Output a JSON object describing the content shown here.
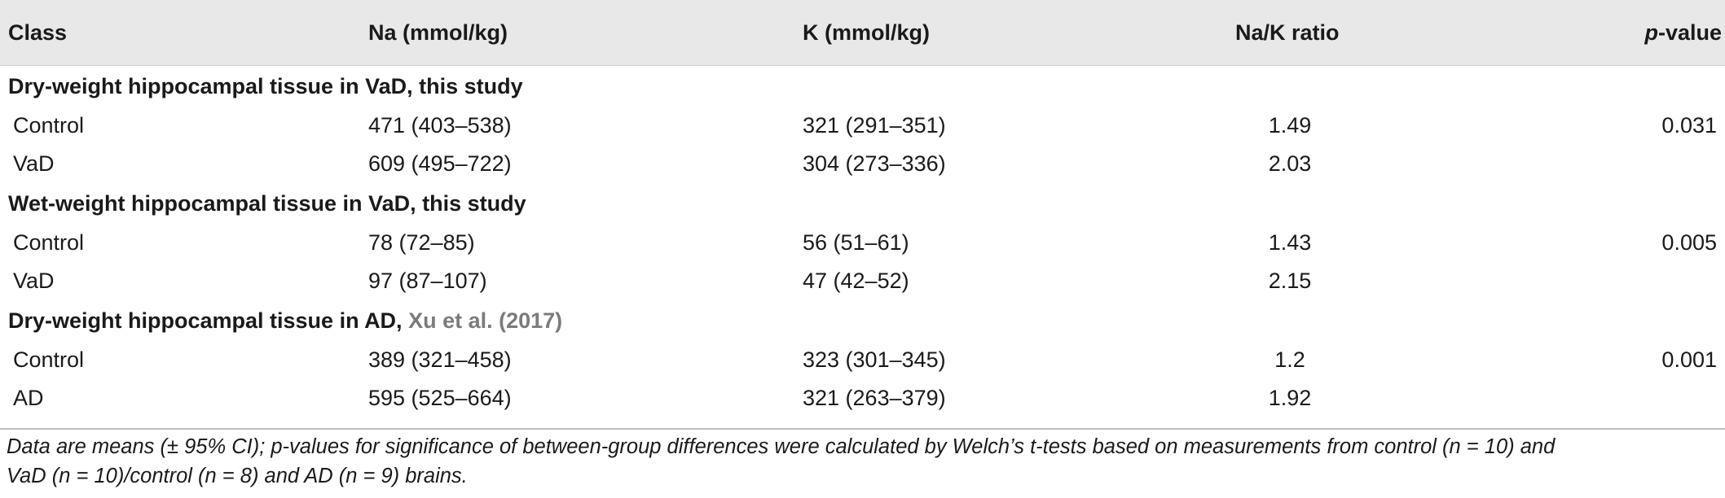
{
  "table": {
    "headers": {
      "class": "Class",
      "na": "Na (mmol/kg)",
      "k": "K (mmol/kg)",
      "ratio": "Na/K ratio",
      "p": "p",
      "p_suffix": "-value"
    },
    "sections": [
      {
        "title": "Dry-weight hippocampal tissue in VaD, this study",
        "citation": "",
        "rows": [
          {
            "class": "Control",
            "na": "471 (403–538)",
            "k": "321 (291–351)",
            "ratio": "1.49",
            "p": "0.031"
          },
          {
            "class": "VaD",
            "na": "609 (495–722)",
            "k": "304 (273–336)",
            "ratio": "2.03",
            "p": ""
          }
        ]
      },
      {
        "title": "Wet-weight hippocampal tissue in VaD, this study",
        "citation": "",
        "rows": [
          {
            "class": "Control",
            "na": "78 (72–85)",
            "k": "56 (51–61)",
            "ratio": "1.43",
            "p": "0.005"
          },
          {
            "class": "VaD",
            "na": "97 (87–107)",
            "k": "47 (42–52)",
            "ratio": "2.15",
            "p": ""
          }
        ]
      },
      {
        "title": "Dry-weight hippocampal tissue in AD, ",
        "citation": "Xu et al. (2017)",
        "rows": [
          {
            "class": "Control",
            "na": "389 (321–458)",
            "k": "323 (301–345)",
            "ratio": "1.2",
            "p": "0.001"
          },
          {
            "class": "AD",
            "na": "595 (525–664)",
            "k": "321 (263–379)",
            "ratio": "1.92",
            "p": ""
          }
        ]
      }
    ]
  },
  "footnote": {
    "line1": "Data are means (± 95% CI); p-values for significance of between-group differences were calculated by Welch’s t-tests based on measurements from control (n = 10) and",
    "line2": "VaD (n = 10)/control (n = 8) and AD (n = 9) brains."
  }
}
